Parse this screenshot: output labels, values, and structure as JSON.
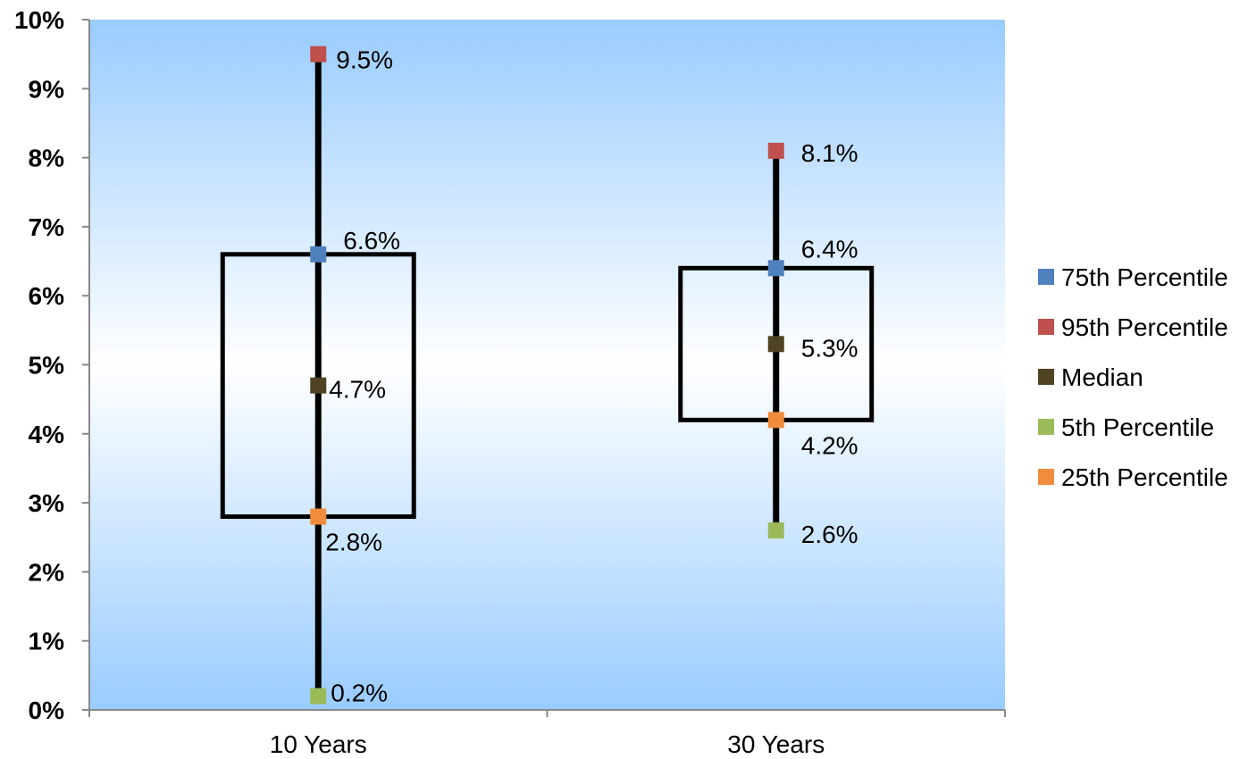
{
  "chart_data": {
    "type": "box",
    "categories": [
      "10 Years",
      "30 Years"
    ],
    "ylim": [
      0,
      10
    ],
    "yticks": [
      {
        "value": 0,
        "label": "0%"
      },
      {
        "value": 1,
        "label": "1%"
      },
      {
        "value": 2,
        "label": "2%"
      },
      {
        "value": 3,
        "label": "3%"
      },
      {
        "value": 4,
        "label": "4%"
      },
      {
        "value": 5,
        "label": "5%"
      },
      {
        "value": 6,
        "label": "6%"
      },
      {
        "value": 7,
        "label": "7%"
      },
      {
        "value": 8,
        "label": "8%"
      },
      {
        "value": 9,
        "label": "9%"
      },
      {
        "value": 10,
        "label": "10%"
      }
    ],
    "series": [
      {
        "name": "75th Percentile",
        "color": "#4F81BD",
        "values": [
          6.6,
          6.4
        ],
        "labels": [
          "6.6%",
          "6.4%"
        ]
      },
      {
        "name": "95th Percentile",
        "color": "#C0504D",
        "values": [
          9.5,
          8.1
        ],
        "labels": [
          "9.5%",
          "8.1%"
        ]
      },
      {
        "name": "Median",
        "color": "#4F4323",
        "values": [
          4.7,
          5.3
        ],
        "labels": [
          "4.7%",
          "5.3%"
        ]
      },
      {
        "name": "5th Percentile",
        "color": "#9BBB59",
        "values": [
          0.2,
          2.6
        ],
        "labels": [
          "0.2%",
          "2.6%"
        ]
      },
      {
        "name": "25th Percentile",
        "color": "#F08D3C",
        "values": [
          2.8,
          4.2
        ],
        "labels": [
          "2.8%",
          "4.2%"
        ]
      }
    ],
    "legend": "right",
    "plot_background": "gradient-blue-white-blue",
    "grid": false
  }
}
